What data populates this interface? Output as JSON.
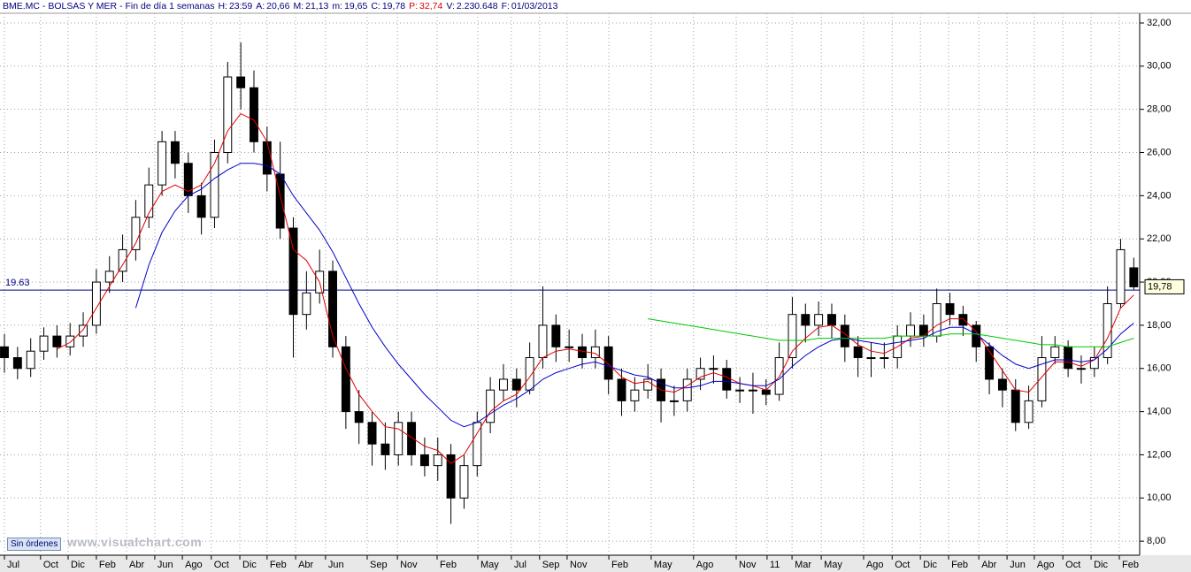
{
  "header": {
    "title": "BME.MC - BOLSAS Y MER - Fin de día 1 semanas",
    "fields": [
      {
        "label": "H:",
        "value": "23:59",
        "color": "#000080"
      },
      {
        "label": "A:",
        "value": "20,66",
        "color": "#000080"
      },
      {
        "label": "M:",
        "value": "21,13",
        "color": "#000080"
      },
      {
        "label": "m:",
        "value": "19,65",
        "color": "#000080"
      },
      {
        "label": "C:",
        "value": "19,78",
        "color": "#000080"
      },
      {
        "label": "P:",
        "value": "32,74",
        "color": "#e00000"
      },
      {
        "label": "V:",
        "value": "2.230.648",
        "color": "#000080"
      },
      {
        "label": "F:",
        "value": "01/03/2013",
        "color": "#000080"
      }
    ]
  },
  "button": "Sin órdenes",
  "watermark": "www.visualchart.com",
  "chart_data": {
    "type": "candlestick",
    "x": [
      0,
      4,
      8,
      12,
      16,
      20,
      24,
      28,
      32,
      36,
      40,
      44,
      48,
      52,
      56,
      60,
      64,
      68,
      72,
      76,
      80,
      84,
      88,
      92,
      96,
      100,
      104,
      108,
      112,
      116,
      120,
      124,
      128,
      132,
      136,
      140,
      144,
      148,
      152,
      156,
      160,
      164,
      168,
      172,
      176,
      180,
      184,
      188,
      192,
      196,
      200,
      204,
      208,
      212,
      216,
      220,
      224,
      228,
      232,
      236,
      240,
      244,
      248,
      252,
      256,
      260,
      264,
      268,
      272,
      276,
      280,
      284,
      288,
      292,
      296,
      300,
      304,
      308,
      312,
      316,
      320,
      324,
      328,
      332,
      336,
      340,
      344
    ],
    "open": [
      17.0,
      16.5,
      16.0,
      16.8,
      17.5,
      17.0,
      17.5,
      18.0,
      20.0,
      20.5,
      21.5,
      23.0,
      24.5,
      26.5,
      25.5,
      24.0,
      23.0,
      26.0,
      29.5,
      29.0,
      26.5,
      25.0,
      22.5,
      18.5,
      19.5,
      20.5,
      17.0,
      14.0,
      13.5,
      12.5,
      12.0,
      13.5,
      12.0,
      11.5,
      12.0,
      10.0,
      11.5,
      13.5,
      15.0,
      15.5,
      15.0,
      16.5,
      18.0,
      17.0,
      17.0,
      16.5,
      17.0,
      15.5,
      14.5,
      15.0,
      15.5,
      14.5,
      14.5,
      15.5,
      16.0,
      16.0,
      15.0,
      15.0,
      15.0,
      14.8,
      16.5,
      18.5,
      18.0,
      18.5,
      18.0,
      17.0,
      16.5,
      16.5,
      16.5,
      17.5,
      18.0,
      17.5,
      19.0,
      18.5,
      18.0,
      17.0,
      15.5,
      15.0,
      13.5,
      14.5,
      16.5,
      17.0,
      16.0,
      16.0,
      16.5,
      19.0,
      20.66
    ],
    "high": [
      17.6,
      17.0,
      17.4,
      17.9,
      18.0,
      18.1,
      18.6,
      20.6,
      21.2,
      22.2,
      23.8,
      25.3,
      27.0,
      27.0,
      26.0,
      24.6,
      26.6,
      30.2,
      31.1,
      29.8,
      27.2,
      26.5,
      23.0,
      20.5,
      21.5,
      21.0,
      17.5,
      15.0,
      14.0,
      13.5,
      14.0,
      14.0,
      12.8,
      12.8,
      12.5,
      12.0,
      14.0,
      15.6,
      16.2,
      16.0,
      17.2,
      19.8,
      18.5,
      17.8,
      17.6,
      17.8,
      17.5,
      16.0,
      15.6,
      16.2,
      16.0,
      15.2,
      16.0,
      16.5,
      16.6,
      16.4,
      15.6,
      15.8,
      15.5,
      17.2,
      19.3,
      19.0,
      19.1,
      19.0,
      18.5,
      17.5,
      17.2,
      17.2,
      18.0,
      18.6,
      18.5,
      19.7,
      19.5,
      18.9,
      18.2,
      17.2,
      16.0,
      15.5,
      15.2,
      17.5,
      17.5,
      17.3,
      16.6,
      17.0,
      19.8,
      22.0,
      21.13
    ],
    "low": [
      15.8,
      15.5,
      15.6,
      16.4,
      16.5,
      16.6,
      17.0,
      17.6,
      19.5,
      20.0,
      21.0,
      22.5,
      24.0,
      24.8,
      23.2,
      22.2,
      22.5,
      25.5,
      28.0,
      26.0,
      24.2,
      22.0,
      16.5,
      17.8,
      19.0,
      16.5,
      13.2,
      12.5,
      11.5,
      11.3,
      11.5,
      11.5,
      11.0,
      10.8,
      8.8,
      9.5,
      11.0,
      13.0,
      14.5,
      14.2,
      14.8,
      16.0,
      16.3,
      16.3,
      16.0,
      16.0,
      14.8,
      13.8,
      14.0,
      14.6,
      13.5,
      13.8,
      14.0,
      15.0,
      15.3,
      14.6,
      14.4,
      13.9,
      14.3,
      14.5,
      16.0,
      17.2,
      17.5,
      17.4,
      16.3,
      15.6,
      15.6,
      16.0,
      16.0,
      17.0,
      17.0,
      17.2,
      18.0,
      17.5,
      16.3,
      14.8,
      14.2,
      13.1,
      13.2,
      14.2,
      16.2,
      15.6,
      15.3,
      15.6,
      16.2,
      18.8,
      19.65
    ],
    "close": [
      16.5,
      16.0,
      16.8,
      17.5,
      17.0,
      17.5,
      18.0,
      20.0,
      20.5,
      21.5,
      23.0,
      24.5,
      26.5,
      25.5,
      24.0,
      23.0,
      26.0,
      29.5,
      29.0,
      26.5,
      25.0,
      22.5,
      18.5,
      19.5,
      20.5,
      17.0,
      14.0,
      13.5,
      12.5,
      12.0,
      13.5,
      12.0,
      11.5,
      12.0,
      10.0,
      11.5,
      13.5,
      15.0,
      15.5,
      15.0,
      16.5,
      18.0,
      17.0,
      17.0,
      16.5,
      17.0,
      15.5,
      14.5,
      15.0,
      15.5,
      14.5,
      14.5,
      15.5,
      16.0,
      16.0,
      15.0,
      15.0,
      15.0,
      14.8,
      16.5,
      18.5,
      18.0,
      18.5,
      18.0,
      17.0,
      16.5,
      16.5,
      16.5,
      17.5,
      18.0,
      17.5,
      19.0,
      18.5,
      18.0,
      17.0,
      15.5,
      15.0,
      13.5,
      14.5,
      16.5,
      17.0,
      16.0,
      16.0,
      16.5,
      19.0,
      21.5,
      19.78
    ],
    "up_color": "#ffffff",
    "down_color": "#000000",
    "candle_stroke": "#000000",
    "lines": [
      {
        "color": "#e00000",
        "values": [
          null,
          null,
          null,
          null,
          16.9,
          17.2,
          17.8,
          18.8,
          19.8,
          20.8,
          21.8,
          23.2,
          24.2,
          24.5,
          24.2,
          24.5,
          25.5,
          27.0,
          27.8,
          27.5,
          26.5,
          24.0,
          21.5,
          21.0,
          20.0,
          17.5,
          16.0,
          14.8,
          14.0,
          13.3,
          13.2,
          12.8,
          12.4,
          12.2,
          11.6,
          12.0,
          13.0,
          14.0,
          14.5,
          14.8,
          15.6,
          16.5,
          16.8,
          16.9,
          16.8,
          16.7,
          16.2,
          15.6,
          15.3,
          15.4,
          15.0,
          14.9,
          15.2,
          15.6,
          15.8,
          15.6,
          15.3,
          15.2,
          15.0,
          15.6,
          16.8,
          17.4,
          17.9,
          18.0,
          17.6,
          17.1,
          16.8,
          16.7,
          17.0,
          17.4,
          17.5,
          18.0,
          18.3,
          18.3,
          17.7,
          16.8,
          15.9,
          15.0,
          14.9,
          15.6,
          16.3,
          16.3,
          16.1,
          16.4,
          17.4,
          18.8,
          19.4
        ]
      },
      {
        "color": "#0000c8",
        "values": [
          null,
          null,
          null,
          null,
          null,
          null,
          null,
          null,
          null,
          null,
          18.8,
          20.8,
          22.3,
          23.3,
          24.0,
          24.3,
          24.8,
          25.2,
          25.5,
          25.5,
          25.4,
          25.0,
          24.0,
          23.2,
          22.4,
          21.4,
          20.2,
          19.0,
          17.9,
          17.0,
          16.2,
          15.5,
          14.8,
          14.2,
          13.6,
          13.3,
          13.5,
          13.9,
          14.3,
          14.6,
          15.0,
          15.5,
          15.8,
          16.0,
          16.2,
          16.3,
          16.1,
          15.9,
          15.7,
          15.6,
          15.3,
          15.1,
          15.1,
          15.2,
          15.4,
          15.4,
          15.3,
          15.2,
          15.2,
          15.5,
          16.1,
          16.6,
          17.0,
          17.3,
          17.4,
          17.3,
          17.2,
          17.1,
          17.2,
          17.3,
          17.4,
          17.7,
          17.9,
          17.9,
          17.6,
          17.1,
          16.6,
          16.2,
          16.0,
          16.2,
          16.4,
          16.4,
          16.3,
          16.4,
          16.9,
          17.6,
          18.1
        ]
      },
      {
        "color": "#00c800",
        "values": [
          null,
          null,
          null,
          null,
          null,
          null,
          null,
          null,
          null,
          null,
          null,
          null,
          null,
          null,
          null,
          null,
          null,
          null,
          null,
          null,
          null,
          null,
          null,
          null,
          null,
          null,
          null,
          null,
          null,
          null,
          null,
          null,
          null,
          null,
          null,
          null,
          null,
          null,
          null,
          null,
          null,
          null,
          null,
          null,
          null,
          null,
          null,
          null,
          null,
          18.3,
          18.2,
          18.1,
          18.0,
          17.9,
          17.8,
          17.7,
          17.6,
          17.5,
          17.4,
          17.3,
          17.3,
          17.3,
          17.4,
          17.4,
          17.4,
          17.4,
          17.4,
          17.4,
          17.5,
          17.5,
          17.5,
          17.5,
          17.6,
          17.6,
          17.6,
          17.5,
          17.4,
          17.3,
          17.2,
          17.1,
          17.1,
          17.0,
          17.0,
          17.0,
          17.0,
          17.2,
          17.4
        ]
      }
    ],
    "reference_line": 19.63,
    "reference_color": "#000080",
    "last_price": {
      "value": 19.78,
      "label": "19,78"
    },
    "xlim": [
      -1.35,
      345.8
    ],
    "xticks": [
      {
        "value": 0,
        "label": "Jul"
      },
      {
        "value": 11,
        "label": "Oct"
      },
      {
        "value": 19.4,
        "label": "Dic"
      },
      {
        "value": 28,
        "label": "Feb"
      },
      {
        "value": 37.2,
        "label": "Abr"
      },
      {
        "value": 45.8,
        "label": "Jun"
      },
      {
        "value": 54.2,
        "label": "Ago"
      },
      {
        "value": 63,
        "label": "Oct"
      },
      {
        "value": 71.7,
        "label": "Dic"
      },
      {
        "value": 80,
        "label": "Feb"
      },
      {
        "value": 88.7,
        "label": "Abr"
      },
      {
        "value": 97.8,
        "label": "Jun"
      },
      {
        "value": 110.5,
        "label": "Sep"
      },
      {
        "value": 119.7,
        "label": "Nov"
      },
      {
        "value": 131.8,
        "label": "Feb"
      },
      {
        "value": 144.2,
        "label": "May"
      },
      {
        "value": 154.4,
        "label": "Jul"
      },
      {
        "value": 163,
        "label": "Sep"
      },
      {
        "value": 171.4,
        "label": "Nov"
      },
      {
        "value": 184.1,
        "label": "Feb"
      },
      {
        "value": 197,
        "label": "May"
      },
      {
        "value": 209.9,
        "label": "Ago"
      },
      {
        "value": 222.9,
        "label": "Nov"
      },
      {
        "value": 232.3,
        "label": "11"
      },
      {
        "value": 239.9,
        "label": "Mar"
      },
      {
        "value": 248.8,
        "label": "May"
      },
      {
        "value": 261.7,
        "label": "Ago"
      },
      {
        "value": 270.4,
        "label": "Oct"
      },
      {
        "value": 279,
        "label": "Dic"
      },
      {
        "value": 287.6,
        "label": "Feb"
      },
      {
        "value": 296.8,
        "label": "Abr"
      },
      {
        "value": 305.4,
        "label": "Jun"
      },
      {
        "value": 313.7,
        "label": "Ago"
      },
      {
        "value": 322.4,
        "label": "Oct"
      },
      {
        "value": 331,
        "label": "Dic"
      },
      {
        "value": 339.6,
        "label": "Feb"
      }
    ],
    "ylim": [
      7.35,
      32.45
    ],
    "yticks": [
      {
        "value": 8,
        "label": "8,00"
      },
      {
        "value": 10,
        "label": "10,00"
      },
      {
        "value": 12,
        "label": "12,00"
      },
      {
        "value": 14,
        "label": "14,00"
      },
      {
        "value": 16,
        "label": "16,00"
      },
      {
        "value": 18,
        "label": "18,00"
      },
      {
        "value": 20,
        "label": "20,00"
      },
      {
        "value": 22,
        "label": "22,00"
      },
      {
        "value": 24,
        "label": "24,00"
      },
      {
        "value": 26,
        "label": "26,00"
      },
      {
        "value": 28,
        "label": "28,00"
      },
      {
        "value": 30,
        "label": "30,00"
      },
      {
        "value": 32,
        "label": "32,00"
      }
    ],
    "grid": true
  }
}
